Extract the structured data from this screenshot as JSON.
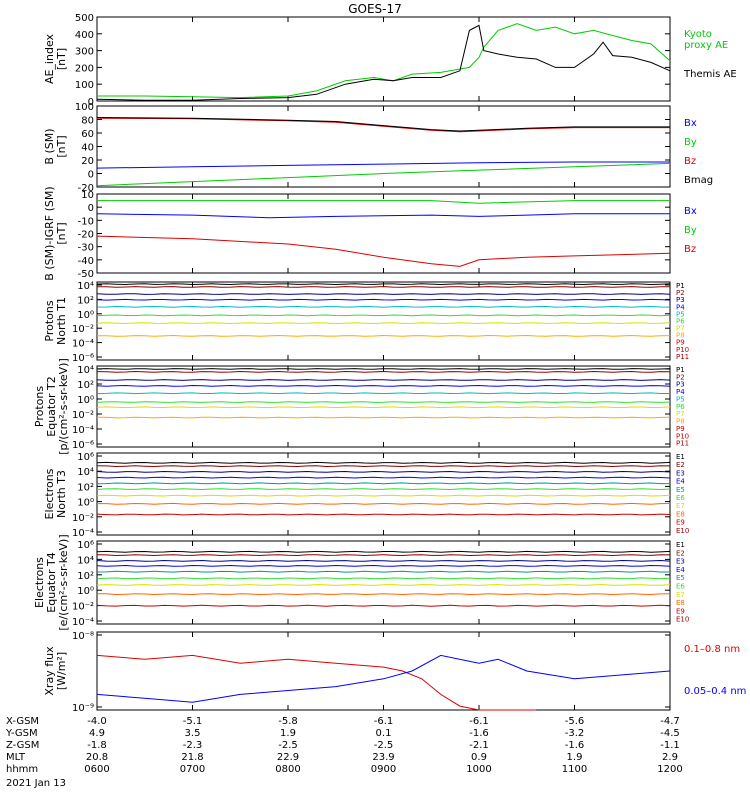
{
  "title": "GOES-17",
  "date": "2021 Jan 13",
  "colors": {
    "black": "#000000",
    "blue": "#0000ff",
    "green": "#00cc00",
    "red": "#dd0000",
    "maroon": "#8b0000",
    "navy": "#00008b",
    "cyan": "#00bbbb",
    "teal": "#009999",
    "lightgreen": "#33dd33",
    "yellow": "#dddd00",
    "gold": "#ffaa00",
    "orange": "#ff6600",
    "crimson": "#cc0000",
    "purple": "#880088",
    "darkred": "#aa0000"
  },
  "chart_data": [
    {
      "type": "line",
      "ylabel": [
        "AE_index",
        "[nT]"
      ],
      "y_ticks": [
        "500",
        "400",
        "300",
        "200",
        "100",
        "0"
      ],
      "ylim": [
        0,
        500
      ],
      "xlim": [
        0,
        6
      ],
      "series": [
        {
          "name": "Kyoto proxy AE",
          "legend": [
            "Kyoto",
            "proxy AE"
          ],
          "color": "#00cc00",
          "x": [
            0,
            0.5,
            1,
            1.5,
            2,
            2.3,
            2.6,
            2.9,
            3.1,
            3.3,
            3.6,
            3.9,
            4.0,
            4.05,
            4.2,
            4.4,
            4.6,
            4.8,
            5,
            5.2,
            5.4,
            5.6,
            5.8,
            6
          ],
          "y": [
            30,
            30,
            25,
            20,
            30,
            60,
            120,
            140,
            120,
            160,
            170,
            200,
            260,
            320,
            420,
            460,
            420,
            440,
            400,
            420,
            390,
            360,
            340,
            240
          ]
        },
        {
          "name": "Themis AE",
          "legend": [
            "Themis AE"
          ],
          "color": "#000000",
          "x": [
            0,
            0.5,
            1,
            1.5,
            2,
            2.3,
            2.6,
            2.9,
            3.1,
            3.3,
            3.6,
            3.8,
            3.9,
            4.0,
            4.05,
            4.2,
            4.4,
            4.6,
            4.8,
            5,
            5.2,
            5.3,
            5.4,
            5.6,
            5.8,
            6
          ],
          "y": [
            10,
            5,
            5,
            15,
            20,
            40,
            100,
            130,
            120,
            140,
            140,
            180,
            420,
            450,
            300,
            280,
            260,
            250,
            200,
            200,
            280,
            350,
            270,
            260,
            230,
            180
          ]
        }
      ]
    },
    {
      "type": "line",
      "ylabel": [
        "B (SM)",
        "[nT]"
      ],
      "y_ticks": [
        "100",
        "80",
        "60",
        "40",
        "20",
        "0",
        "-20"
      ],
      "ylim": [
        -20,
        100
      ],
      "xlim": [
        0,
        6
      ],
      "series": [
        {
          "name": "Bx",
          "legend": [
            "Bx"
          ],
          "color": "#0000ff",
          "x": [
            0,
            1,
            2,
            3,
            4,
            5,
            6
          ],
          "y": [
            8,
            10,
            12,
            14,
            16,
            17,
            17
          ]
        },
        {
          "name": "By",
          "legend": [
            "By"
          ],
          "color": "#00cc00",
          "x": [
            0,
            1,
            2,
            3,
            4,
            5,
            6
          ],
          "y": [
            -18,
            -12,
            -6,
            0,
            5,
            10,
            15
          ]
        },
        {
          "name": "Bz",
          "legend": [
            "Bz"
          ],
          "color": "#dd0000",
          "x": [
            0,
            1,
            2,
            2.5,
            3,
            3.5,
            3.8,
            4,
            4.5,
            5,
            5.5,
            6
          ],
          "y": [
            82,
            81,
            78,
            76,
            70,
            64,
            62,
            63,
            66,
            68,
            68,
            68
          ]
        },
        {
          "name": "Bmag",
          "legend": [
            "Bmag"
          ],
          "color": "#000000",
          "x": [
            0,
            1,
            2,
            2.5,
            3,
            3.5,
            3.8,
            4,
            4.5,
            5,
            5.5,
            6
          ],
          "y": [
            83,
            82,
            79,
            77,
            71,
            65,
            63,
            64,
            67,
            69,
            69,
            69
          ]
        }
      ]
    },
    {
      "type": "line",
      "ylabel": [
        "B (SM)-IGRF (SM)",
        "[nT]"
      ],
      "y_ticks": [
        "10",
        "0",
        "-10",
        "-20",
        "-30",
        "-40",
        "-50"
      ],
      "ylim": [
        -50,
        10
      ],
      "xlim": [
        0,
        6
      ],
      "series": [
        {
          "name": "Bx",
          "legend": [
            "Bx"
          ],
          "color": "#0000ff",
          "x": [
            0,
            1,
            1.8,
            2.5,
            3.5,
            4,
            4.5,
            5,
            5.5,
            6
          ],
          "y": [
            -5,
            -6,
            -8,
            -7,
            -6,
            -7,
            -6,
            -5,
            -5,
            -5
          ]
        },
        {
          "name": "By",
          "legend": [
            "By"
          ],
          "color": "#00cc00",
          "x": [
            0,
            1,
            2,
            3,
            3.5,
            4,
            4.5,
            5,
            6
          ],
          "y": [
            5,
            5,
            5,
            5,
            5,
            3,
            4,
            5,
            5
          ]
        },
        {
          "name": "Bz",
          "legend": [
            "Bz"
          ],
          "color": "#dd0000",
          "x": [
            0,
            1,
            2,
            2.5,
            3,
            3.5,
            3.8,
            4,
            4.5,
            5,
            5.5,
            6
          ],
          "y": [
            -22,
            -24,
            -28,
            -32,
            -38,
            -43,
            -45,
            -40,
            -38,
            -37,
            -36,
            -35
          ]
        }
      ]
    },
    {
      "type": "line",
      "ylabel": [
        "Protons",
        "North T1"
      ],
      "y_log": true,
      "y_ticks": [
        "10⁴",
        "10²",
        "10⁰",
        "10⁻²",
        "10⁻⁴",
        "10⁻⁶"
      ],
      "ylim_exp": [
        -7,
        4
      ],
      "xlim": [
        0,
        6
      ],
      "legend": [
        "P1",
        "P2",
        "P3",
        "P4",
        "P5",
        "P6",
        "P7",
        "P8",
        "P9",
        "P10",
        "P11"
      ],
      "series": [
        {
          "name": "P1",
          "color": "#000000",
          "y_exp": 3.7
        },
        {
          "name": "P2",
          "color": "#8b0000",
          "y_exp": 3.3
        },
        {
          "name": "P3",
          "color": "#00008b",
          "y_exp": 2.3
        },
        {
          "name": "P4",
          "color": "#0000ff",
          "y_exp": 1.5
        },
        {
          "name": "P5",
          "color": "#00bbbb",
          "y_exp": 0.5
        },
        {
          "name": "P6",
          "color": "#33dd33",
          "y_exp": -0.7
        },
        {
          "name": "P7",
          "color": "#dddd00",
          "y_exp": -1.8
        },
        {
          "name": "P8",
          "color": "#ffaa00",
          "y_exp": -3.6
        }
      ]
    },
    {
      "type": "line",
      "ylabel": [
        "Protons",
        "Equator T2",
        "[p/(cm²-s-sr-keV)]"
      ],
      "y_log": true,
      "y_ticks": [
        "10⁴",
        "10²",
        "10⁰",
        "10⁻²",
        "10⁻⁴",
        "10⁻⁶"
      ],
      "ylim_exp": [
        -7,
        4
      ],
      "xlim": [
        0,
        6
      ],
      "legend": [
        "P1",
        "P2",
        "P3",
        "P4",
        "P5",
        "P6",
        "P7",
        "P8",
        "P9",
        "P10",
        "P11"
      ],
      "series": [
        {
          "name": "P1",
          "color": "#000000",
          "y_exp": 3.6
        },
        {
          "name": "P2",
          "color": "#8b0000",
          "y_exp": 3.2
        },
        {
          "name": "P3",
          "color": "#00008b",
          "y_exp": 2.1
        },
        {
          "name": "P4",
          "color": "#0000ff",
          "y_exp": 1.3
        },
        {
          "name": "P5",
          "color": "#00bbbb",
          "y_exp": 0.3
        },
        {
          "name": "P6",
          "color": "#33dd33",
          "y_exp": -0.9
        },
        {
          "name": "P7",
          "color": "#dddd00",
          "y_exp": -1.6
        },
        {
          "name": "P8",
          "color": "#ffaa00",
          "y_exp": -3.0
        }
      ]
    },
    {
      "type": "line",
      "ylabel": [
        "Electrons",
        "North T3"
      ],
      "y_log": true,
      "y_ticks": [
        "10⁶",
        "10⁴",
        "10²",
        "10⁰",
        "10⁻²",
        "10⁻⁴"
      ],
      "ylim_exp": [
        -4,
        6
      ],
      "xlim": [
        0,
        6
      ],
      "legend": [
        "E1",
        "E2",
        "E3",
        "E4",
        "E5",
        "E6",
        "E7",
        "E8",
        "E9",
        "E10"
      ],
      "series": [
        {
          "name": "E1",
          "color": "#000000",
          "y_exp": 4.8
        },
        {
          "name": "E2",
          "color": "#8b0000",
          "y_exp": 4.4
        },
        {
          "name": "E3",
          "color": "#00008b",
          "y_exp": 3.7
        },
        {
          "name": "E4",
          "color": "#0000ff",
          "y_exp": 3.0
        },
        {
          "name": "E5",
          "color": "#009999",
          "y_exp": 2.3
        },
        {
          "name": "E6",
          "color": "#33dd33",
          "y_exp": 1.6
        },
        {
          "name": "E7",
          "color": "#dddd00",
          "y_exp": 0.8
        },
        {
          "name": "E8",
          "color": "#ff6600",
          "y_exp": -0.2
        },
        {
          "name": "E9",
          "color": "#cc0000",
          "y_exp": -1.5
        }
      ]
    },
    {
      "type": "line",
      "ylabel": [
        "Electrons",
        "Equator T4",
        "[e/(cm²-s-sr-keV)]"
      ],
      "y_log": true,
      "y_ticks": [
        "10⁶",
        "10⁴",
        "10²",
        "10⁰",
        "10⁻²",
        "10⁻⁴"
      ],
      "ylim_exp": [
        -4,
        6
      ],
      "xlim": [
        0,
        6
      ],
      "legend": [
        "E1",
        "E2",
        "E3",
        "E4",
        "E5",
        "E6",
        "E7",
        "E8",
        "E9",
        "E10"
      ],
      "series": [
        {
          "name": "E1",
          "color": "#000000",
          "y_exp": 4.7
        },
        {
          "name": "E2",
          "color": "#8b0000",
          "y_exp": 4.3
        },
        {
          "name": "E3",
          "color": "#00008b",
          "y_exp": 3.6
        },
        {
          "name": "E4",
          "color": "#0000ff",
          "y_exp": 3.0
        },
        {
          "name": "E5",
          "color": "#009999",
          "y_exp": 2.3
        },
        {
          "name": "E6",
          "color": "#33dd33",
          "y_exp": 1.5
        },
        {
          "name": "E7",
          "color": "#dddd00",
          "y_exp": 0.7
        },
        {
          "name": "E8",
          "color": "#ff6600",
          "y_exp": -0.4
        },
        {
          "name": "E9",
          "color": "#cc0000",
          "y_exp": -1.8
        }
      ]
    },
    {
      "type": "line",
      "ylabel": [
        "Xray flux",
        "[W/m²]"
      ],
      "y_log": true,
      "y_ticks": [
        "10⁻⁸",
        "10⁻⁹"
      ],
      "ylim_exp": [
        -9,
        -8
      ],
      "xlim": [
        0,
        6
      ],
      "legend": [
        "0.1–0.8 nm",
        "0.05–0.4 nm"
      ],
      "series": [
        {
          "name": "0.1–0.8 nm",
          "color": "#dd0000",
          "x": [
            0,
            0.5,
            1,
            1.5,
            2,
            2.5,
            3,
            3.2,
            3.4,
            3.6,
            3.8,
            4.0,
            4.2,
            4.4,
            4.6
          ],
          "y_exp": [
            -8.3,
            -8.35,
            -8.3,
            -8.4,
            -8.35,
            -8.4,
            -8.45,
            -8.5,
            -8.6,
            -8.8,
            -8.95,
            -9.0,
            -9.0,
            -9.0,
            -9.0
          ]
        },
        {
          "name": "0.05–0.4 nm",
          "color": "#0000ff",
          "x": [
            0,
            0.5,
            1,
            1.5,
            2,
            2.5,
            3,
            3.3,
            3.6,
            4,
            4.2,
            4.5,
            5,
            5.5,
            6
          ],
          "y_exp": [
            -8.8,
            -8.85,
            -8.9,
            -8.8,
            -8.75,
            -8.7,
            -8.6,
            -8.5,
            -8.3,
            -8.4,
            -8.35,
            -8.5,
            -8.6,
            -8.55,
            -8.5
          ]
        }
      ]
    }
  ],
  "xaxis": {
    "rows": [
      {
        "label": "X-GSM",
        "values": [
          "-4.0",
          "-5.1",
          "-5.8",
          "-6.1",
          "-6.1",
          "-5.6",
          "-4.7"
        ]
      },
      {
        "label": "Y-GSM",
        "values": [
          "4.9",
          "3.5",
          "1.9",
          "0.1",
          "-1.6",
          "-3.2",
          "-4.5"
        ]
      },
      {
        "label": "Z-GSM",
        "values": [
          "-1.8",
          "-2.3",
          "-2.5",
          "-2.5",
          "-2.1",
          "-1.6",
          "-1.1"
        ]
      },
      {
        "label": "MLT",
        "values": [
          "20.8",
          "21.8",
          "22.9",
          "23.9",
          "0.9",
          "1.9",
          "2.9"
        ]
      },
      {
        "label": "hhmm",
        "values": [
          "0600",
          "0700",
          "0800",
          "0900",
          "1000",
          "1100",
          "1200"
        ]
      }
    ]
  }
}
